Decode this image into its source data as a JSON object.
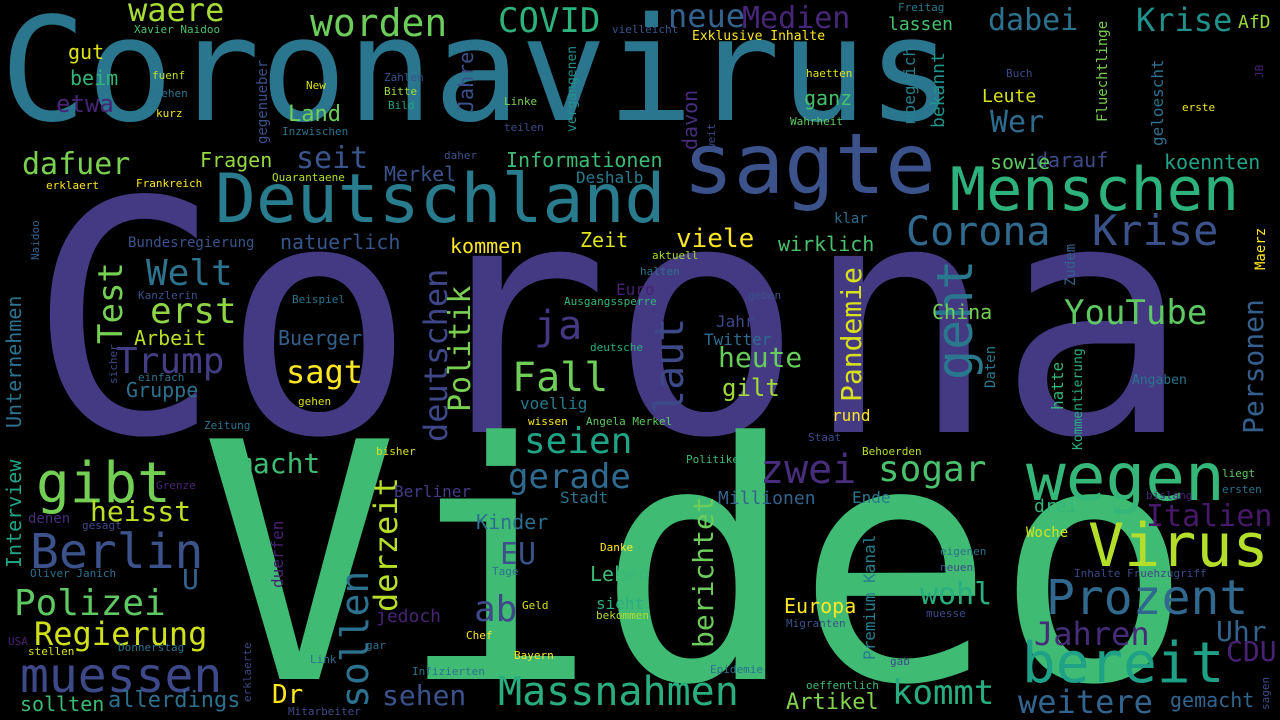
{
  "words": [
    {
      "text": "Coronavirus",
      "color": "#2a768e"
    },
    {
      "text": "Corona",
      "color": "#443a83"
    },
    {
      "text": "Video",
      "color": "#3fbb74"
    },
    {
      "text": "sagte",
      "color": "#3b528b"
    },
    {
      "text": "Deutschland",
      "color": "#287c8e"
    },
    {
      "text": "Menschen",
      "color": "#2db27d"
    },
    {
      "text": "wegen",
      "color": "#35b779"
    },
    {
      "text": "Virus",
      "color": "#b5de2b"
    },
    {
      "text": "bereit",
      "color": "#1fa187"
    },
    {
      "text": "Prozent",
      "color": "#31688e"
    },
    {
      "text": "Massnahmen",
      "color": "#29af7f"
    },
    {
      "text": "Berlin",
      "color": "#3b528b"
    },
    {
      "text": "muessen",
      "color": "#3e4989"
    },
    {
      "text": "gibt",
      "color": "#74d055"
    },
    {
      "text": "Krise",
      "color": "#3b528b"
    },
    {
      "text": "Corona",
      "color": "#306a8e"
    },
    {
      "text": "worden",
      "color": "#6ccd5a"
    },
    {
      "text": "COVID",
      "color": "#2db27d"
    },
    {
      "text": "waere",
      "color": "#a8db34"
    },
    {
      "text": "neue",
      "color": "#33628d"
    },
    {
      "text": "Medien",
      "color": "#482677"
    },
    {
      "text": "dabei",
      "color": "#2c728e"
    },
    {
      "text": "Krise",
      "color": "#21918c"
    },
    {
      "text": "geht",
      "color": "#2a788e"
    },
    {
      "text": "Welt",
      "color": "#2c738e"
    },
    {
      "text": "erst",
      "color": "#8ed645"
    },
    {
      "text": "Test",
      "color": "#75d054"
    },
    {
      "text": "Trump",
      "color": "#433d84"
    },
    {
      "text": "sagt",
      "color": "#fde725"
    },
    {
      "text": "Fall",
      "color": "#6ece58"
    },
    {
      "text": "seien",
      "color": "#20a486"
    },
    {
      "text": "laut",
      "color": "#3e4989"
    },
    {
      "text": "ja",
      "color": "#453781"
    },
    {
      "text": "deutschen",
      "color": "#3f4788"
    },
    {
      "text": "Politik",
      "color": "#7ad151"
    },
    {
      "text": "zwei",
      "color": "#472d7b"
    },
    {
      "text": "sogar",
      "color": "#4ac16d"
    },
    {
      "text": "gerade",
      "color": "#306a8e"
    },
    {
      "text": "macht",
      "color": "#3fbc73"
    },
    {
      "text": "heisst",
      "color": "#bddf26"
    },
    {
      "text": "Polizei",
      "color": "#5ec962"
    },
    {
      "text": "Regierung",
      "color": "#d0e11c"
    },
    {
      "text": "sollen",
      "color": "#2c728e"
    },
    {
      "text": "derzeit",
      "color": "#b8de29"
    },
    {
      "text": "ab",
      "color": "#3f4889"
    },
    {
      "text": "EU",
      "color": "#3b528b"
    },
    {
      "text": "Pandemie",
      "color": "#d8e219"
    },
    {
      "text": "heute",
      "color": "#67cc5c"
    },
    {
      "text": "gilt",
      "color": "#a2da37"
    },
    {
      "text": "Personen",
      "color": "#355f8d"
    },
    {
      "text": "YouTube",
      "color": "#5ec962"
    },
    {
      "text": "Italien",
      "color": "#48186a"
    },
    {
      "text": "Jahren",
      "color": "#472c7a"
    },
    {
      "text": "Uhr",
      "color": "#33638d"
    },
    {
      "text": "CDU",
      "color": "#482374"
    },
    {
      "text": "weitere",
      "color": "#32648e"
    },
    {
      "text": "kommt",
      "color": "#27ad81"
    },
    {
      "text": "Dr",
      "color": "#fde725"
    },
    {
      "text": "sehen",
      "color": "#3b528b"
    },
    {
      "text": "sollten",
      "color": "#3bbb75"
    },
    {
      "text": "allerdings",
      "color": "#2d708e"
    },
    {
      "text": "Artikel",
      "color": "#84d44b"
    },
    {
      "text": "gemacht",
      "color": "#32648e"
    },
    {
      "text": "wohl",
      "color": "#29af7f"
    },
    {
      "text": "Europa",
      "color": "#fde725"
    },
    {
      "text": "berichtet",
      "color": "#6ccd5a"
    },
    {
      "text": "Leben",
      "color": "#3aba76"
    },
    {
      "text": "Kinder",
      "color": "#2e6e8e"
    },
    {
      "text": "Wer",
      "color": "#2f6b8e"
    },
    {
      "text": "Land",
      "color": "#6ece58"
    },
    {
      "text": "seit",
      "color": "#39558c"
    },
    {
      "text": "dafuer",
      "color": "#7ad151"
    },
    {
      "text": "etwa",
      "color": "#482475"
    },
    {
      "text": "gut",
      "color": "#dde318"
    },
    {
      "text": "beim",
      "color": "#32b67a"
    },
    {
      "text": "Fragen",
      "color": "#95d840"
    },
    {
      "text": "Informationen",
      "color": "#3bbb75"
    },
    {
      "text": "Merkel",
      "color": "#3b528b"
    },
    {
      "text": "Deshalb",
      "color": "#287d8e"
    },
    {
      "text": "darauf",
      "color": "#3e4a89"
    },
    {
      "text": "sowie",
      "color": "#5ec962"
    },
    {
      "text": "koennten",
      "color": "#20a386"
    },
    {
      "text": "kommen",
      "color": "#fde725"
    },
    {
      "text": "Zeit",
      "color": "#dde318"
    },
    {
      "text": "viele",
      "color": "#fde725"
    },
    {
      "text": "wirklich",
      "color": "#48c16e"
    },
    {
      "text": "natuerlich",
      "color": "#39568c"
    },
    {
      "text": "Bundesregierung",
      "color": "#3a538b"
    },
    {
      "text": "Buerger",
      "color": "#34608d"
    },
    {
      "text": "Arbeit",
      "color": "#b8de29"
    },
    {
      "text": "Gruppe",
      "color": "#2c728e"
    },
    {
      "text": "China",
      "color": "#74d055"
    },
    {
      "text": "Jahr",
      "color": "#3e4989"
    },
    {
      "text": "Twitter",
      "color": "#2e6d8e"
    },
    {
      "text": "Euro",
      "color": "#482071"
    },
    {
      "text": "rund",
      "color": "#fde725"
    },
    {
      "text": "ganz",
      "color": "#46c06f"
    },
    {
      "text": "Leute",
      "color": "#d8e219"
    },
    {
      "text": "Jahre",
      "color": "#3b518b"
    },
    {
      "text": "davon",
      "color": "#472e7c"
    },
    {
      "text": "moeglich",
      "color": "#277f8e"
    },
    {
      "text": "bekannt",
      "color": "#1f958b"
    },
    {
      "text": "Interview",
      "color": "#20a486"
    },
    {
      "text": "Unternehmen",
      "color": "#2c728e"
    },
    {
      "text": "Berliner",
      "color": "#443b84"
    },
    {
      "text": "Millionen",
      "color": "#33638d"
    },
    {
      "text": "Ende",
      "color": "#2a788e"
    },
    {
      "text": "drei",
      "color": "#32b67a"
    },
    {
      "text": "Woche",
      "color": "#d2e21b"
    },
    {
      "text": "Stadt",
      "color": "#2b748e"
    },
    {
      "text": "voellig",
      "color": "#2a788e"
    },
    {
      "text": "jedoch",
      "color": "#482475"
    },
    {
      "text": "U",
      "color": "#33638d"
    },
    {
      "text": "duerfen",
      "color": "#482173"
    },
    {
      "text": "Premium Kanal",
      "color": "#277f8e"
    },
    {
      "text": "sieht",
      "color": "#2ab07f"
    },
    {
      "text": "hatte",
      "color": "#33b679"
    },
    {
      "text": "Daten",
      "color": "#2a788e"
    },
    {
      "text": "Zudem",
      "color": "#35608d"
    },
    {
      "text": "Maerz",
      "color": "#fde725"
    },
    {
      "text": "klar",
      "color": "#2f6c8e"
    },
    {
      "text": "Freitag",
      "color": "#2a788e"
    },
    {
      "text": "Zahlen",
      "color": "#39558c"
    },
    {
      "text": "Bitte",
      "color": "#a0da39"
    },
    {
      "text": "Bild",
      "color": "#20a386"
    },
    {
      "text": "Linke",
      "color": "#7ad151"
    },
    {
      "text": "vergangenen",
      "color": "#21918c"
    },
    {
      "text": "weit",
      "color": "#3f4889"
    },
    {
      "text": "Wahrheit",
      "color": "#5ec962"
    },
    {
      "text": "haetten",
      "color": "#dde318"
    },
    {
      "text": "Buch",
      "color": "#3e4989"
    },
    {
      "text": "erste",
      "color": "#f2e51d"
    },
    {
      "text": "geloescht",
      "color": "#2d718e"
    },
    {
      "text": "Fluechtlinge",
      "color": "#7ad151"
    },
    {
      "text": "lassen",
      "color": "#46c06f"
    },
    {
      "text": "AfD",
      "color": "#9bd93c"
    },
    {
      "text": "Exklusive Inhalte",
      "color": "#fde725"
    },
    {
      "text": "vielleicht",
      "color": "#39558c"
    },
    {
      "text": "Xavier Naidoo",
      "color": "#4ac16d"
    },
    {
      "text": "New",
      "color": "#d8e219"
    },
    {
      "text": "fuenf",
      "color": "#c0df25"
    },
    {
      "text": "stehen",
      "color": "#2c738e"
    },
    {
      "text": "kurz",
      "color": "#f1e51d"
    },
    {
      "text": "gegenueber",
      "color": "#3b528b"
    },
    {
      "text": "Inzwischen",
      "color": "#2c728e"
    },
    {
      "text": "teilen",
      "color": "#3e4989"
    },
    {
      "text": "daher",
      "color": "#3b528b"
    },
    {
      "text": "Quarantaene",
      "color": "#b5de2b"
    },
    {
      "text": "erklaert",
      "color": "#fde725"
    },
    {
      "text": "Frankreich",
      "color": "#fde725"
    },
    {
      "text": "Naidoo",
      "color": "#33638d"
    },
    {
      "text": "aktuell",
      "color": "#a8db34"
    },
    {
      "text": "halten",
      "color": "#2c728e"
    },
    {
      "text": "Kanzlerin",
      "color": "#3b528b"
    },
    {
      "text": "Beispiel",
      "color": "#2c728e"
    },
    {
      "text": "Ausgangssperre",
      "color": "#35b779"
    },
    {
      "text": "geben",
      "color": "#3b528b"
    },
    {
      "text": "deutsche",
      "color": "#29af7f"
    },
    {
      "text": "sicher",
      "color": "#3e4a89"
    },
    {
      "text": "einfach",
      "color": "#2c728e"
    },
    {
      "text": "gehen",
      "color": "#d8e219"
    },
    {
      "text": "Kommentierung",
      "color": "#29af7f"
    },
    {
      "text": "Angaben",
      "color": "#2c728e"
    },
    {
      "text": "Zeitung",
      "color": "#2c728e"
    },
    {
      "text": "wissen",
      "color": "#fde725"
    },
    {
      "text": "Angela Merkel",
      "color": "#5ec962"
    },
    {
      "text": "Staat",
      "color": "#3e4989"
    },
    {
      "text": "Behoerden",
      "color": "#b5de2b"
    },
    {
      "text": "bisher",
      "color": "#d8e219"
    },
    {
      "text": "Politiker",
      "color": "#3bbb75"
    },
    {
      "text": "Grenze",
      "color": "#482475"
    },
    {
      "text": "liegt",
      "color": "#5ec962"
    },
    {
      "text": "ersten",
      "color": "#2c728e"
    },
    {
      "text": "bislang",
      "color": "#482475"
    },
    {
      "text": "denen",
      "color": "#472c7a"
    },
    {
      "text": "gesagt",
      "color": "#3e4989"
    },
    {
      "text": "Oliver Janich",
      "color": "#2c728e"
    },
    {
      "text": "Tage",
      "color": "#2c728e"
    },
    {
      "text": "Danke",
      "color": "#fde725"
    },
    {
      "text": "eigenen",
      "color": "#2c728e"
    },
    {
      "text": "neuen",
      "color": "#3e4989"
    },
    {
      "text": "Inhalte Fruehzugriff",
      "color": "#3e4989"
    },
    {
      "text": "Geld",
      "color": "#d8e219"
    },
    {
      "text": "bekommen",
      "color": "#b5de2b"
    },
    {
      "text": "Migranten",
      "color": "#3b528b"
    },
    {
      "text": "muesse",
      "color": "#3e4989"
    },
    {
      "text": "USA",
      "color": "#482071"
    },
    {
      "text": "stellen",
      "color": "#d8e219"
    },
    {
      "text": "Donnerstag",
      "color": "#2c728e"
    },
    {
      "text": "erklaerte",
      "color": "#3e4989"
    },
    {
      "text": "Link",
      "color": "#2c728e"
    },
    {
      "text": "gar",
      "color": "#2c728e"
    },
    {
      "text": "Chef",
      "color": "#fde725"
    },
    {
      "text": "Bayern",
      "color": "#fde725"
    },
    {
      "text": "Infizierten",
      "color": "#2c728e"
    },
    {
      "text": "Epidemie",
      "color": "#2c728e"
    },
    {
      "text": "gab",
      "color": "#3e4989"
    },
    {
      "text": "oeffentlich",
      "color": "#3bbb75"
    },
    {
      "text": "Mitarbeiter",
      "color": "#3e4989"
    },
    {
      "text": "sagen",
      "color": "#3e4989"
    },
    {
      "text": "JB",
      "color": "#482071"
    }
  ]
}
